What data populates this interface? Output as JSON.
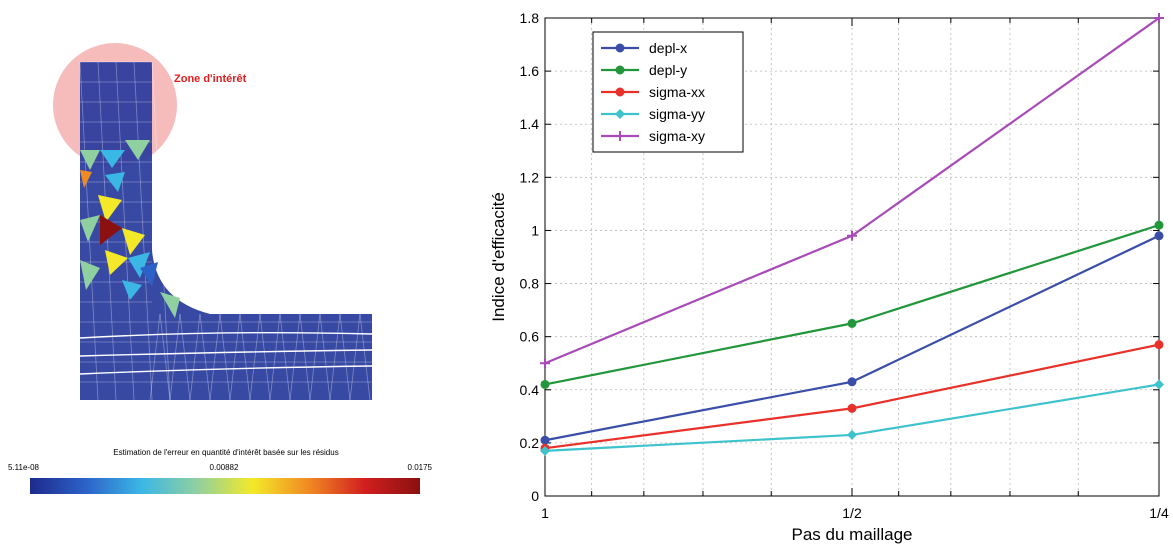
{
  "left_figure": {
    "zone_label": "Zone d'intérêt",
    "colorbar": {
      "title": "Estimation de l'erreur en quantité d'intérêt basée sur les résidus",
      "min_label": "5.11e-08",
      "mid_label": "0.00882",
      "max_label": "0.0175",
      "colors": [
        "#1e2a8c",
        "#2c62c8",
        "#3bb7e6",
        "#8fd0a0",
        "#f3e928",
        "#f08a22",
        "#d21f1f",
        "#8b1010"
      ]
    },
    "mesh_color": "#273a9c",
    "zone_color": "#f5b5b5"
  },
  "chart_data": {
    "type": "line",
    "xlabel": "Pas du maillage",
    "ylabel": "Indice d'efficacité",
    "x_scale": "log",
    "categories": [
      "1",
      "1/2",
      "1/4"
    ],
    "x": [
      1,
      0.5,
      0.25
    ],
    "xlim": [
      1,
      0.25
    ],
    "ylim": [
      0,
      1.8
    ],
    "yticks": [
      "0",
      "0.2",
      "0.4",
      "0.6",
      "0.8",
      "1",
      "1.2",
      "1.4",
      "1.6",
      "1.8"
    ],
    "grid": true,
    "legend_position": "top-left",
    "series": [
      {
        "name": "depl-x",
        "color": "#3a4ea8",
        "marker": "circle",
        "values": [
          0.21,
          0.43,
          0.98
        ]
      },
      {
        "name": "depl-y",
        "color": "#22963a",
        "marker": "circle",
        "values": [
          0.42,
          0.65,
          1.02
        ]
      },
      {
        "name": "sigma-xx",
        "color": "#e8312a",
        "marker": "circle",
        "values": [
          0.18,
          0.33,
          0.57
        ]
      },
      {
        "name": "sigma-yy",
        "color": "#3ec2cc",
        "marker": "diamond",
        "values": [
          0.17,
          0.23,
          0.42
        ]
      },
      {
        "name": "sigma-xy",
        "color": "#a84bb8",
        "marker": "plus",
        "values": [
          0.5,
          0.98,
          1.8
        ]
      }
    ]
  }
}
